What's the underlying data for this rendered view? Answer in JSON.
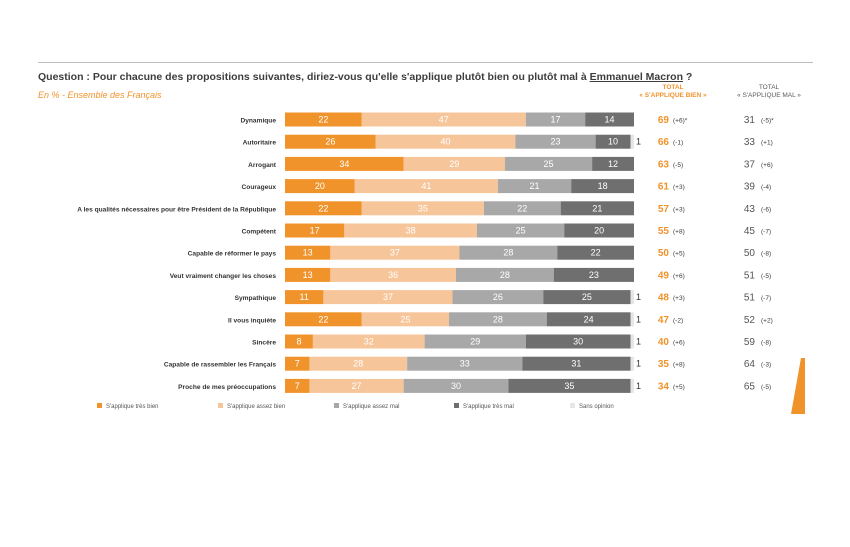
{
  "question": {
    "prefix": "Question : Pour chacune des propositions suivantes, diriez-vous qu'elle s'applique plutôt bien ou plutôt mal à ",
    "name": "Emmanuel Macron",
    "suffix": " ?"
  },
  "subtitle": "En % - Ensemble des Français",
  "headers": {
    "good": [
      "TOTAL",
      "« S'APPLIQUE BIEN »"
    ],
    "bad": [
      "TOTAL",
      "« S'APPLIQUE MAL »"
    ]
  },
  "colors": {
    "tres_bien": "#f0932b",
    "assez_bien": "#f7c59a",
    "assez_mal": "#a8a8a8",
    "tres_mal": "#6f6f6f",
    "sans_opinion": "#e6e6e6",
    "total_good": "#f0932b",
    "total_bad": "#555555"
  },
  "chart_data": {
    "type": "bar",
    "orientation": "horizontal",
    "stacked": true,
    "categories": [
      "Dynamique",
      "Autoritaire",
      "Arrogant",
      "Courageux",
      "A les qualités nécessaires pour être Président de la République",
      "Compétent",
      "Capable de réformer le pays",
      "Veut vraiment changer les choses",
      "Sympathique",
      "Il vous inquiète",
      "Sincère",
      "Capable de rassembler les Français",
      "Proche de mes préoccupations"
    ],
    "series": [
      {
        "name": "S'applique très bien",
        "values": [
          22,
          26,
          34,
          20,
          22,
          17,
          13,
          13,
          11,
          22,
          8,
          7,
          7
        ]
      },
      {
        "name": "S'applique assez bien",
        "values": [
          47,
          40,
          29,
          41,
          35,
          38,
          37,
          36,
          37,
          25,
          32,
          28,
          27
        ]
      },
      {
        "name": "S'applique assez mal",
        "values": [
          17,
          23,
          25,
          21,
          22,
          25,
          28,
          28,
          26,
          28,
          29,
          33,
          30
        ]
      },
      {
        "name": "S'applique très mal",
        "values": [
          14,
          10,
          12,
          18,
          21,
          20,
          22,
          23,
          25,
          24,
          30,
          31,
          35
        ]
      },
      {
        "name": "Sans opinion",
        "values": [
          0,
          1,
          0,
          0,
          0,
          0,
          0,
          0,
          1,
          1,
          1,
          1,
          1
        ]
      }
    ],
    "data_labels": [
      [
        "22",
        "26",
        "34",
        "20",
        "22",
        "17",
        "13",
        "13",
        "11",
        "22",
        "8",
        "7",
        "7"
      ],
      [
        "47",
        "40",
        "29",
        "41",
        "35",
        "38",
        "37",
        "36",
        "37",
        "25",
        "32",
        "28",
        "27"
      ],
      [
        "17",
        "23",
        "25",
        "21",
        "22",
        "25",
        "28",
        "28",
        "26",
        "28",
        "29",
        "33",
        "30"
      ],
      [
        "14",
        "10",
        "12",
        "18",
        "21",
        "20",
        "22",
        "23",
        "25",
        "24",
        "30",
        "31",
        "35"
      ],
      [
        "",
        "1",
        "",
        "",
        "",
        "",
        "",
        "",
        "1",
        "1",
        "1",
        "1",
        "1"
      ]
    ],
    "total_good": [
      69,
      66,
      63,
      61,
      57,
      55,
      50,
      49,
      48,
      47,
      40,
      35,
      34
    ],
    "total_good_change": [
      "(+6)*",
      "(-1)",
      "(-5)",
      "(+3)",
      "(+3)",
      "(+8)",
      "(+5)",
      "(+6)",
      "(+3)",
      "(-2)",
      "(+6)",
      "(+8)",
      "(+5)"
    ],
    "total_bad": [
      31,
      33,
      37,
      39,
      43,
      45,
      50,
      51,
      51,
      52,
      59,
      64,
      65
    ],
    "total_bad_change": [
      "(-5)*",
      "(+1)",
      "(+6)",
      "(-4)",
      "(-6)",
      "(-7)",
      "(-8)",
      "(-5)",
      "(-7)",
      "(+2)",
      "(-8)",
      "(-3)",
      "(-5)"
    ],
    "xlim": [
      0,
      100
    ],
    "legend": {
      "position": "bottom",
      "items": [
        "S'applique très bien",
        "S'applique assez bien",
        "S'applique assez mal",
        "S'applique très mal",
        "Sans opinion"
      ]
    }
  }
}
